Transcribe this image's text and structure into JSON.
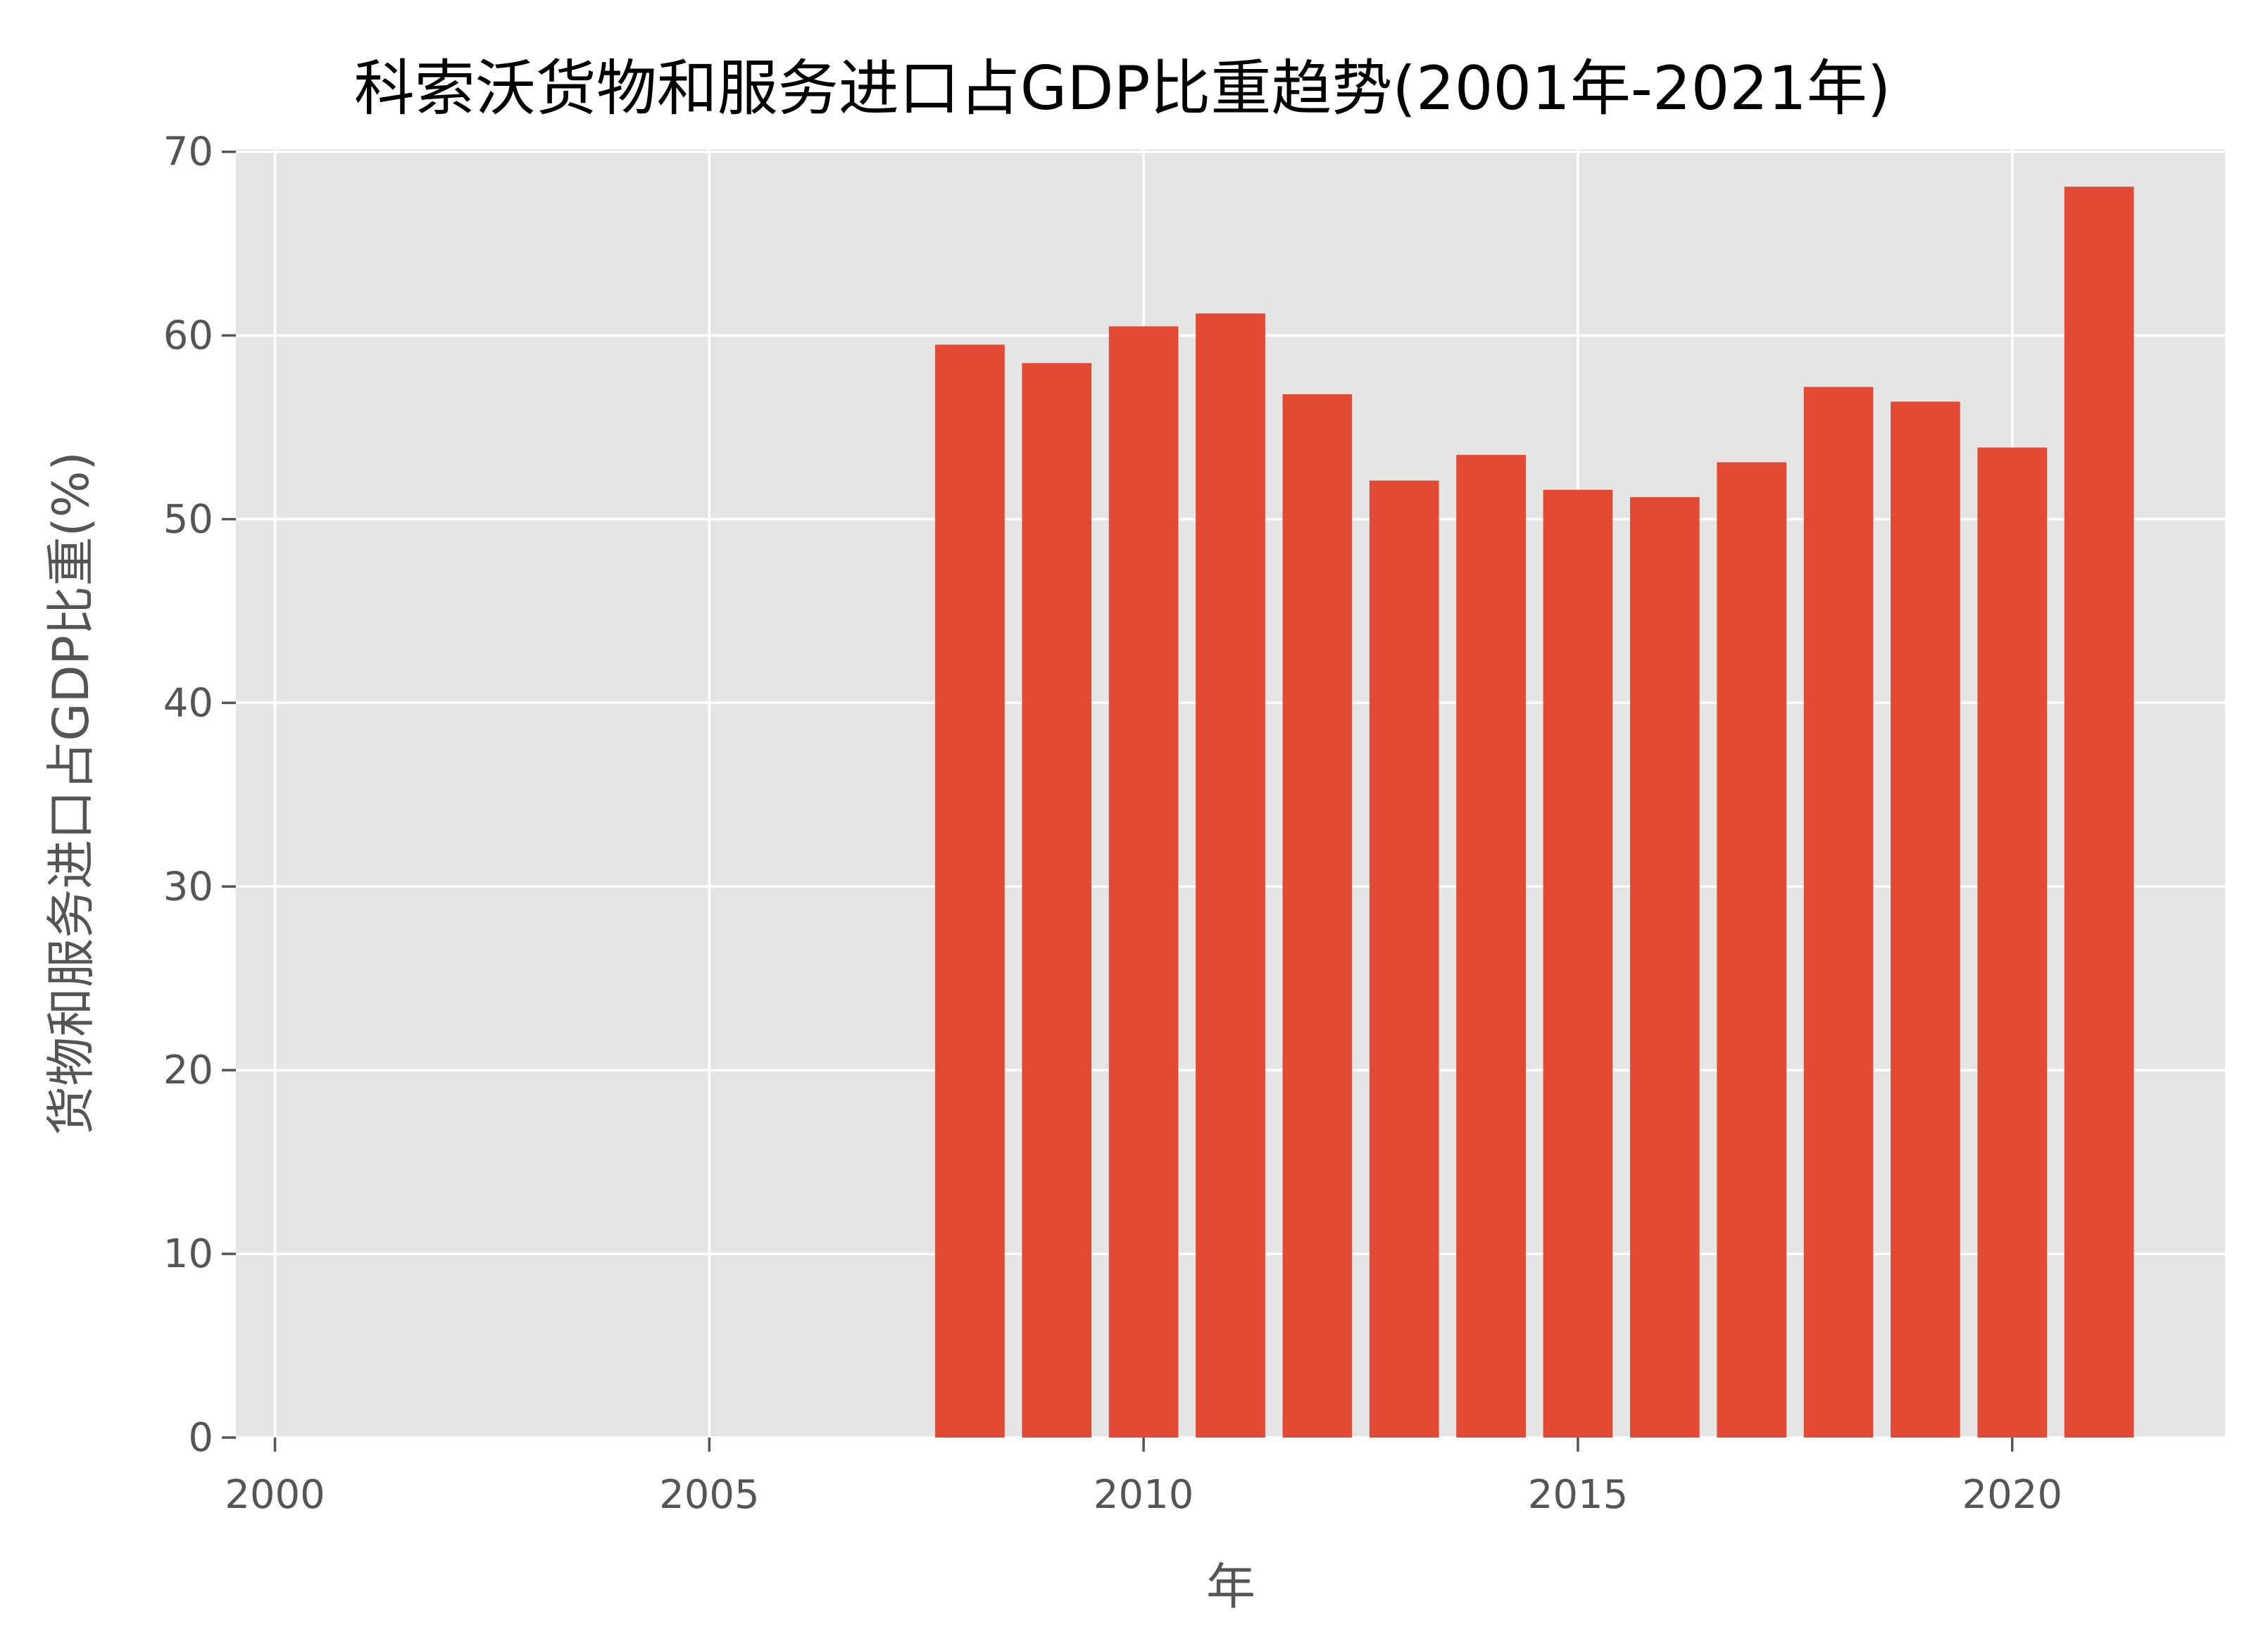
{
  "chart_data": {
    "type": "bar",
    "title": "科索沃货物和服务进口占GDP比重趋势(2001年-2021年)",
    "xlabel": "年",
    "ylabel": "货物和服务进口占GDP比重(%)",
    "x": [
      2008,
      2009,
      2010,
      2011,
      2012,
      2013,
      2014,
      2015,
      2016,
      2017,
      2018,
      2019,
      2020,
      2021
    ],
    "values": [
      59.5,
      58.5,
      60.5,
      61.2,
      56.8,
      52.1,
      53.5,
      51.6,
      51.2,
      53.1,
      57.2,
      56.4,
      53.9,
      68.1
    ],
    "xlim": [
      1999.55,
      2022.45
    ],
    "ylim": [
      0,
      70.14
    ],
    "xticks": [
      2000,
      2005,
      2010,
      2015,
      2020
    ],
    "yticks": [
      0,
      10,
      20,
      30,
      40,
      50,
      60,
      70
    ],
    "grid": true,
    "colors": {
      "bar": "#e24a33",
      "plot_background": "#e5e5e5",
      "grid": "#ffffff",
      "tick_text": "#555555",
      "title_text": "#000000"
    }
  }
}
